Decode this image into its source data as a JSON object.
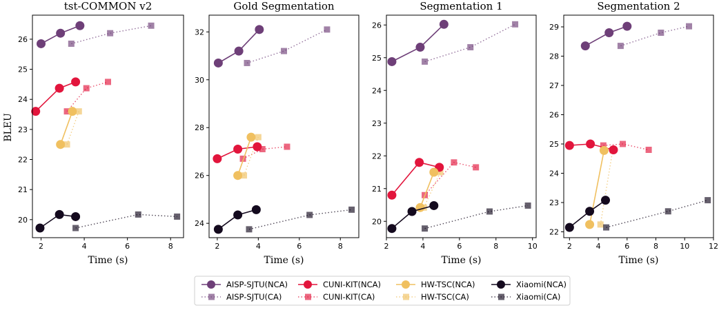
{
  "colors": {
    "AISP-SJTU": "#6e3f78",
    "CUNI-KIT": "#e2153c",
    "HW-TSC": "#f0c060",
    "Xiaomi": "#140a1e"
  },
  "y_axis_label": "BLEU",
  "legend": [
    {
      "label": "AISP-SJTU(NCA)",
      "team": "AISP-SJTU",
      "style": "nca"
    },
    {
      "label": "AISP-SJTU(CA)",
      "team": "AISP-SJTU",
      "style": "ca"
    },
    {
      "label": "CUNI-KIT(NCA)",
      "team": "CUNI-KIT",
      "style": "nca"
    },
    {
      "label": "CUNI-KIT(CA)",
      "team": "CUNI-KIT",
      "style": "ca"
    },
    {
      "label": "HW-TSC(NCA)",
      "team": "HW-TSC",
      "style": "nca"
    },
    {
      "label": "HW-TSC(CA)",
      "team": "HW-TSC",
      "style": "ca"
    },
    {
      "label": "Xiaomi(NCA)",
      "team": "Xiaomi",
      "style": "nca"
    },
    {
      "label": "Xiaomi(CA)",
      "team": "Xiaomi",
      "style": "ca"
    }
  ],
  "chart_data": [
    {
      "type": "line",
      "title": "tst-COMMON v2",
      "xlabel": "Time (s)",
      "xlim": [
        1.6,
        8.6
      ],
      "ylim": [
        19.4,
        26.8
      ],
      "xticks": [
        2,
        4,
        6,
        8
      ],
      "yticks": [
        20,
        21,
        22,
        23,
        24,
        25,
        26
      ],
      "series": [
        {
          "name": "AISP-SJTU(NCA)",
          "x": [
            2.0,
            2.9,
            3.8
          ],
          "y": [
            25.85,
            26.2,
            26.45
          ]
        },
        {
          "name": "AISP-SJTU(CA)",
          "x": [
            3.4,
            5.2,
            7.1
          ],
          "y": [
            25.85,
            26.2,
            26.45
          ]
        },
        {
          "name": "CUNI-KIT(NCA)",
          "x": [
            1.75,
            2.85,
            3.6
          ],
          "y": [
            23.6,
            24.37,
            24.58
          ]
        },
        {
          "name": "CUNI-KIT(CA)",
          "x": [
            3.2,
            4.1,
            5.1
          ],
          "y": [
            23.6,
            24.37,
            24.58
          ]
        },
        {
          "name": "HW-TSC(NCA)",
          "x": [
            2.9,
            3.45
          ],
          "y": [
            22.5,
            23.6
          ]
        },
        {
          "name": "HW-TSC(CA)",
          "x": [
            3.2,
            3.75
          ],
          "y": [
            22.5,
            23.6
          ]
        },
        {
          "name": "Xiaomi(NCA)",
          "x": [
            1.95,
            2.85,
            3.6
          ],
          "y": [
            19.72,
            20.17,
            20.1
          ]
        },
        {
          "name": "Xiaomi(CA)",
          "x": [
            3.6,
            6.5,
            8.3
          ],
          "y": [
            19.72,
            20.17,
            20.1
          ]
        }
      ]
    },
    {
      "type": "line",
      "title": "Gold Segmentation",
      "xlabel": "Time (s)",
      "xlim": [
        1.6,
        8.9
      ],
      "ylim": [
        23.4,
        32.7
      ],
      "xticks": [
        2,
        4,
        6,
        8
      ],
      "yticks": [
        24,
        26,
        28,
        30,
        32
      ],
      "series": [
        {
          "name": "AISP-SJTU(NCA)",
          "x": [
            2.05,
            3.05,
            4.05
          ],
          "y": [
            30.7,
            31.2,
            32.1
          ]
        },
        {
          "name": "AISP-SJTU(CA)",
          "x": [
            3.45,
            5.25,
            7.35
          ],
          "y": [
            30.7,
            31.2,
            32.1
          ]
        },
        {
          "name": "CUNI-KIT(NCA)",
          "x": [
            2.0,
            3.0,
            3.95
          ],
          "y": [
            26.7,
            27.1,
            27.2
          ]
        },
        {
          "name": "CUNI-KIT(CA)",
          "x": [
            3.25,
            4.2,
            5.4
          ],
          "y": [
            26.7,
            27.1,
            27.2
          ]
        },
        {
          "name": "HW-TSC(NCA)",
          "x": [
            3.0,
            3.65
          ],
          "y": [
            26.0,
            27.6
          ]
        },
        {
          "name": "HW-TSC(CA)",
          "x": [
            3.3,
            4.0
          ],
          "y": [
            26.0,
            27.6
          ]
        },
        {
          "name": "Xiaomi(NCA)",
          "x": [
            2.05,
            3.0,
            3.9
          ],
          "y": [
            23.75,
            24.35,
            24.57
          ]
        },
        {
          "name": "Xiaomi(CA)",
          "x": [
            3.55,
            6.5,
            8.55
          ],
          "y": [
            23.75,
            24.35,
            24.57
          ]
        }
      ]
    },
    {
      "type": "line",
      "title": "Segmentation 1",
      "xlabel": "Time (s)",
      "xlim": [
        2.0,
        10.2
      ],
      "ylim": [
        19.5,
        26.3
      ],
      "xticks": [
        2,
        4,
        6,
        8,
        10
      ],
      "yticks": [
        20,
        21,
        22,
        23,
        24,
        25,
        26
      ],
      "series": [
        {
          "name": "AISP-SJTU(NCA)",
          "x": [
            2.3,
            3.85,
            5.15
          ],
          "y": [
            24.88,
            25.32,
            26.02
          ]
        },
        {
          "name": "AISP-SJTU(CA)",
          "x": [
            4.1,
            6.6,
            9.05
          ],
          "y": [
            24.88,
            25.32,
            26.02
          ]
        },
        {
          "name": "CUNI-KIT(NCA)",
          "x": [
            2.3,
            3.8,
            4.9
          ],
          "y": [
            20.8,
            21.8,
            21.65
          ]
        },
        {
          "name": "CUNI-KIT(CA)",
          "x": [
            4.1,
            5.7,
            6.9
          ],
          "y": [
            20.8,
            21.8,
            21.65
          ]
        },
        {
          "name": "HW-TSC(NCA)",
          "x": [
            3.85,
            4.6
          ],
          "y": [
            20.42,
            21.5
          ]
        },
        {
          "name": "HW-TSC(CA)",
          "x": [
            4.05,
            4.95
          ],
          "y": [
            20.42,
            21.5
          ]
        },
        {
          "name": "Xiaomi(NCA)",
          "x": [
            2.3,
            3.4,
            4.6
          ],
          "y": [
            19.78,
            20.3,
            20.48
          ]
        },
        {
          "name": "Xiaomi(CA)",
          "x": [
            4.1,
            7.65,
            9.75
          ],
          "y": [
            19.78,
            20.3,
            20.48
          ]
        }
      ]
    },
    {
      "type": "line",
      "title": "Segmentation 2",
      "xlabel": "Time (s)",
      "xlim": [
        1.6,
        12.0
      ],
      "ylim": [
        21.8,
        29.4
      ],
      "xticks": [
        2,
        4,
        6,
        8,
        10,
        12
      ],
      "yticks": [
        22,
        23,
        24,
        25,
        26,
        27,
        28,
        29
      ],
      "series": [
        {
          "name": "AISP-SJTU(NCA)",
          "x": [
            3.1,
            4.75,
            6.0
          ],
          "y": [
            28.35,
            28.8,
            29.02
          ]
        },
        {
          "name": "AISP-SJTU(CA)",
          "x": [
            5.55,
            8.35,
            10.3
          ],
          "y": [
            28.35,
            28.8,
            29.02
          ]
        },
        {
          "name": "CUNI-KIT(NCA)",
          "x": [
            2.0,
            3.45,
            5.05
          ],
          "y": [
            24.95,
            25.0,
            24.8
          ]
        },
        {
          "name": "CUNI-KIT(CA)",
          "x": [
            4.35,
            5.7,
            7.5
          ],
          "y": [
            24.95,
            25.0,
            24.8
          ]
        },
        {
          "name": "HW-TSC(NCA)",
          "x": [
            3.4,
            4.4
          ],
          "y": [
            22.25,
            24.78
          ]
        },
        {
          "name": "HW-TSC(CA)",
          "x": [
            4.15,
            5.0
          ],
          "y": [
            22.25,
            24.78
          ]
        },
        {
          "name": "Xiaomi(NCA)",
          "x": [
            2.0,
            3.4,
            4.5
          ],
          "y": [
            22.15,
            22.7,
            23.08
          ]
        },
        {
          "name": "Xiaomi(CA)",
          "x": [
            4.55,
            8.85,
            11.6
          ],
          "y": [
            22.15,
            22.7,
            23.08
          ]
        }
      ]
    }
  ]
}
